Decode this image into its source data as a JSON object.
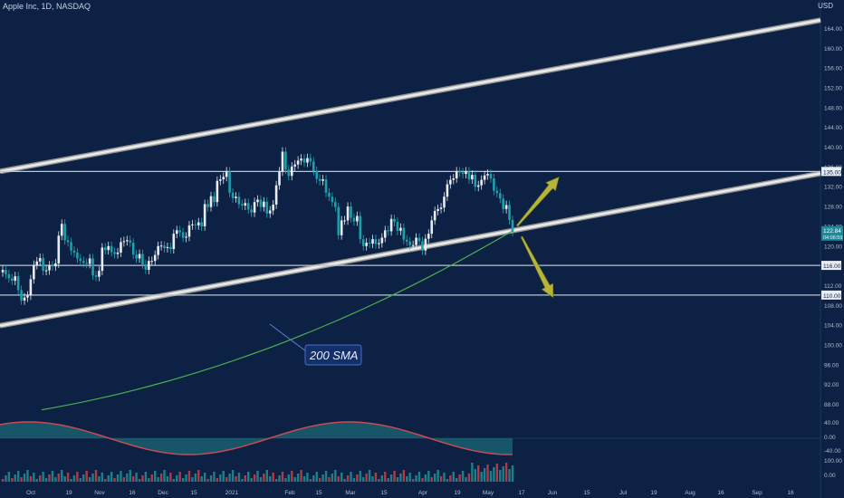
{
  "header": {
    "title": "Apple Inc, 1D, NASDAQ",
    "currency": "USD"
  },
  "colors": {
    "background": "#0c2143",
    "up": "#26a69a",
    "down": "#ef5350",
    "candle_body": "#e8ecf2",
    "sma": "#4caf50",
    "channel": "#d8d8d8",
    "level": "#c0c4cc",
    "arrow": "#b5b53a",
    "annotation_bg": "#13306b",
    "annotation_border": "#4a6fc7"
  },
  "annotation": {
    "label": "200 SMA"
  },
  "price_labels": {
    "current": "122.84",
    "countdown": "04:06:59"
  },
  "chart_data": {
    "type": "candlestick",
    "title": "Apple Inc, 1D, NASDAQ",
    "price_axis": {
      "ticks": [
        "164.00",
        "160.00",
        "156.00",
        "152.00",
        "148.00",
        "144.00",
        "140.00",
        "136.00",
        "132.00",
        "128.00",
        "124.00",
        "120.00",
        "116.00",
        "112.00",
        "108.00",
        "104.00",
        "100.00",
        "96.00",
        "92.00",
        "88.00"
      ],
      "ylim": [
        84,
        168
      ]
    },
    "time_axis": {
      "ticks": [
        "Oct",
        "19",
        "Nov",
        "16",
        "Dec",
        "15",
        "2021",
        "Feb",
        "15",
        "Mar",
        "15",
        "Apr",
        "19",
        "May",
        "17",
        "Jun",
        "15",
        "Jul",
        "19",
        "Aug",
        "16",
        "Sep",
        "16"
      ]
    },
    "closes": [
      115.1,
      114.2,
      113.4,
      112.9,
      113.8,
      111.0,
      108.9,
      109.5,
      109.9,
      113.2,
      116.1,
      116.8,
      117.5,
      114.9,
      115.0,
      116.0,
      115.8,
      116.4,
      122.0,
      124.4,
      121.1,
      120.7,
      119.0,
      118.6,
      117.4,
      116.9,
      116.5,
      116.3,
      117.4,
      114.0,
      113.7,
      114.9,
      119.6,
      119.1,
      119.9,
      118.7,
      118.3,
      118.6,
      120.7,
      120.9,
      121.1,
      120.6,
      118.2,
      117.4,
      118.3,
      116.2,
      115.1,
      116.9,
      116.9,
      118.1,
      119.9,
      120.0,
      119.5,
      119.7,
      119.3,
      122.4,
      123.1,
      122.7,
      121.6,
      121.8,
      124.1,
      124.3,
      124.1,
      124.7,
      123.9,
      128.4,
      127.8,
      130.0,
      128.8,
      133.1,
      133.4,
      133.9,
      135.0,
      130.7,
      129.6,
      129.9,
      128.4,
      128.1,
      128.6,
      127.3,
      126.7,
      128.8,
      129.3,
      127.8,
      128.9,
      126.5,
      127.1,
      128.3,
      132.2,
      135.0,
      139.0,
      135.4,
      134.1,
      136.0,
      136.4,
      137.2,
      137.6,
      136.8,
      137.7,
      137.0,
      135.1,
      133.5,
      133.1,
      133.4,
      130.7,
      129.9,
      128.8,
      127.8,
      122.1,
      125.1,
      125.1,
      127.9,
      125.6,
      124.9,
      126.0,
      121.3,
      119.9,
      120.6,
      120.4,
      121.3,
      120.3,
      120.5,
      121.6,
      123.1,
      122.9,
      125.4,
      124.8,
      123.0,
      123.6,
      121.2,
      120.8,
      120.1,
      120.1,
      121.6,
      120.9,
      119.0,
      121.4,
      122.4,
      125.1,
      127.0,
      127.4,
      127.7,
      129.9,
      132.4,
      133.3,
      133.6,
      135.0,
      134.8,
      134.5,
      135.0,
      133.4,
      134.3,
      131.9,
      132.2,
      133.3,
      134.2,
      134.5,
      133.6,
      131.1,
      130.6,
      129.5,
      127.4,
      128.2,
      125.2,
      122.8
    ],
    "sma_200": [
      null,
      null,
      null,
      null,
      null,
      null,
      null,
      null,
      null,
      null,
      null,
      null,
      null,
      null,
      null,
      null,
      null,
      null,
      null,
      null,
      null,
      null,
      null,
      null,
      null,
      null,
      null,
      null,
      null,
      null,
      null,
      null,
      null,
      null,
      null,
      null,
      null,
      null,
      null,
      null,
      null,
      null,
      null,
      null,
      null,
      null,
      null,
      null,
      null,
      null,
      null,
      null,
      null,
      null,
      null,
      null,
      null,
      null,
      null,
      null,
      null,
      null,
      null,
      null,
      null,
      null,
      null,
      null,
      null,
      null,
      null,
      null,
      null,
      null,
      null,
      null,
      null,
      null,
      null,
      null,
      null,
      null,
      null,
      null,
      null,
      null,
      null,
      null,
      null,
      null,
      null,
      null,
      null,
      null,
      null,
      null,
      null,
      null,
      null,
      null,
      null,
      null,
      null,
      null,
      null,
      null,
      null,
      null,
      null,
      null,
      null,
      null,
      null,
      null,
      null,
      null,
      null,
      null,
      null,
      null,
      null,
      null,
      null,
      null,
      null,
      null,
      null,
      null,
      null,
      null,
      null,
      null,
      null,
      null,
      null,
      null,
      null,
      null,
      null,
      null,
      null,
      null,
      null,
      null,
      null,
      null,
      null,
      null,
      null,
      null,
      null,
      null,
      null,
      null,
      null,
      null,
      null,
      null,
      null,
      null,
      null,
      null,
      null,
      null,
      null
    ],
    "sma_curve": {
      "start": 86.8,
      "end": 123.0
    },
    "horizontal_levels": [
      {
        "label": "135.00",
        "price": 135.0
      },
      {
        "label": "116.00",
        "price": 116.0
      },
      {
        "label": "110.00",
        "price": 110.0
      }
    ],
    "channel": {
      "upper": {
        "from_price": 135.0,
        "to_price": 165.6
      },
      "lower": {
        "from_price": 103.8,
        "to_price": 134.6
      }
    },
    "oscillator": {
      "ticks": [
        "40.00",
        "0.00",
        "-40.00"
      ]
    },
    "volume": {
      "ticks": [
        "100.00",
        "0.00"
      ]
    }
  }
}
